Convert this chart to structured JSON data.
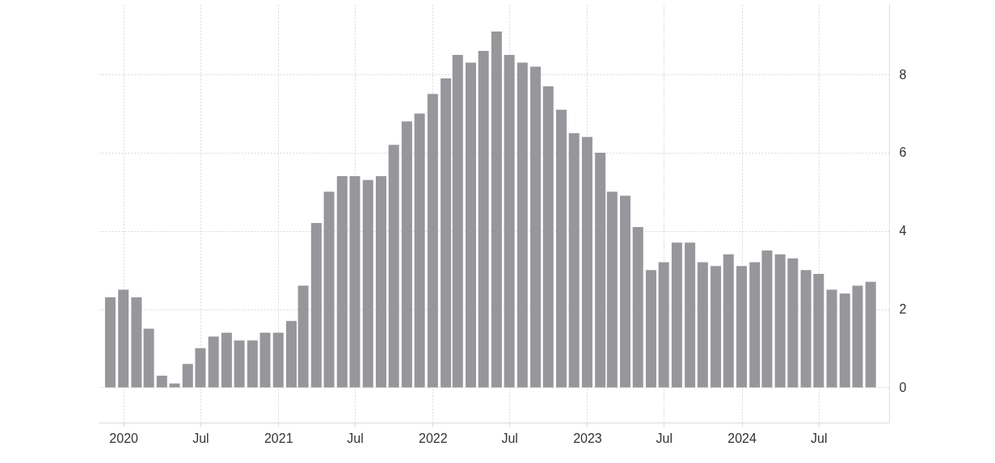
{
  "chart_data": {
    "type": "bar",
    "x": [
      "2019-12",
      "2020-01",
      "2020-02",
      "2020-03",
      "2020-04",
      "2020-05",
      "2020-06",
      "2020-07",
      "2020-08",
      "2020-09",
      "2020-10",
      "2020-11",
      "2020-12",
      "2021-01",
      "2021-02",
      "2021-03",
      "2021-04",
      "2021-05",
      "2021-06",
      "2021-07",
      "2021-08",
      "2021-09",
      "2021-10",
      "2021-11",
      "2021-12",
      "2022-01",
      "2022-02",
      "2022-03",
      "2022-04",
      "2022-05",
      "2022-06",
      "2022-07",
      "2022-08",
      "2022-09",
      "2022-10",
      "2022-11",
      "2022-12",
      "2023-01",
      "2023-02",
      "2023-03",
      "2023-04",
      "2023-05",
      "2023-06",
      "2023-07",
      "2023-08",
      "2023-09",
      "2023-10",
      "2023-11",
      "2023-12",
      "2024-01",
      "2024-02",
      "2024-03",
      "2024-04",
      "2024-05",
      "2024-06",
      "2024-07",
      "2024-08",
      "2024-09",
      "2024-10",
      "2024-11"
    ],
    "values": [
      2.3,
      2.5,
      2.3,
      1.5,
      0.3,
      0.1,
      0.6,
      1.0,
      1.3,
      1.4,
      1.2,
      1.2,
      1.4,
      1.4,
      1.7,
      2.6,
      4.2,
      5.0,
      5.4,
      5.4,
      5.3,
      5.4,
      6.2,
      6.8,
      7.0,
      7.5,
      7.9,
      8.5,
      8.3,
      8.6,
      9.1,
      8.5,
      8.3,
      8.2,
      7.7,
      7.1,
      6.5,
      6.4,
      6.0,
      5.0,
      4.9,
      4.1,
      3.0,
      3.2,
      3.7,
      3.7,
      3.2,
      3.1,
      3.4,
      3.1,
      3.2,
      3.5,
      3.4,
      3.3,
      3.0,
      2.9,
      2.5,
      2.4,
      2.6,
      2.7
    ],
    "color": "#97979b",
    "xlim": [
      "2019-11-13",
      "2024-12-05"
    ],
    "xticks": [
      {
        "value": "2020-01",
        "label": "2020"
      },
      {
        "value": "2020-07",
        "label": "Jul"
      },
      {
        "value": "2021-01",
        "label": "2021"
      },
      {
        "value": "2021-07",
        "label": "Jul"
      },
      {
        "value": "2022-01",
        "label": "2022"
      },
      {
        "value": "2022-07",
        "label": "Jul"
      },
      {
        "value": "2023-01",
        "label": "2023"
      },
      {
        "value": "2023-07",
        "label": "Jul"
      },
      {
        "value": "2024-01",
        "label": "2024"
      },
      {
        "value": "2024-07",
        "label": "Jul"
      }
    ],
    "ylim": [
      -0.9,
      9.8
    ],
    "yticks": [
      0,
      2,
      4,
      6,
      8
    ],
    "grid": true
  }
}
